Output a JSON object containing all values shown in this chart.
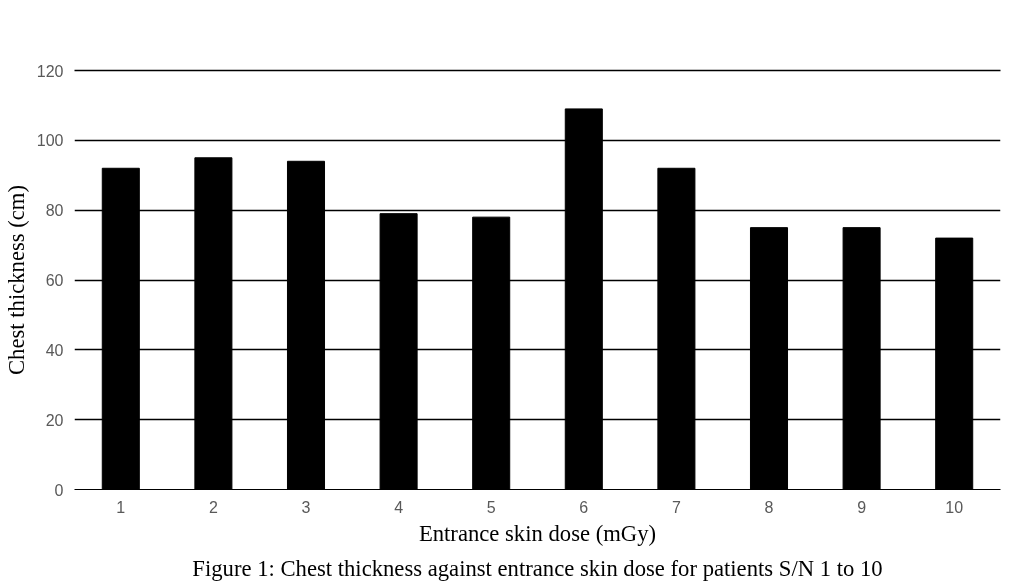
{
  "chart_data": {
    "type": "bar",
    "xlabel": "Entrance skin dose (mGy)",
    "ylabel": "Chest thickness (cm)",
    "categories": [
      "1",
      "2",
      "3",
      "4",
      "5",
      "6",
      "7",
      "8",
      "9",
      "10"
    ],
    "values": [
      92,
      95,
      94,
      79,
      78,
      109,
      92,
      75,
      75,
      72
    ],
    "color": "#000000",
    "ylim": [
      0,
      120
    ],
    "yticks": [
      0,
      20,
      40,
      60,
      80,
      100,
      120
    ],
    "grid": "y",
    "annotations": [
      "Figure 1: Chest thickness against entrance skin dose for patients S/N 1 to 10"
    ]
  }
}
